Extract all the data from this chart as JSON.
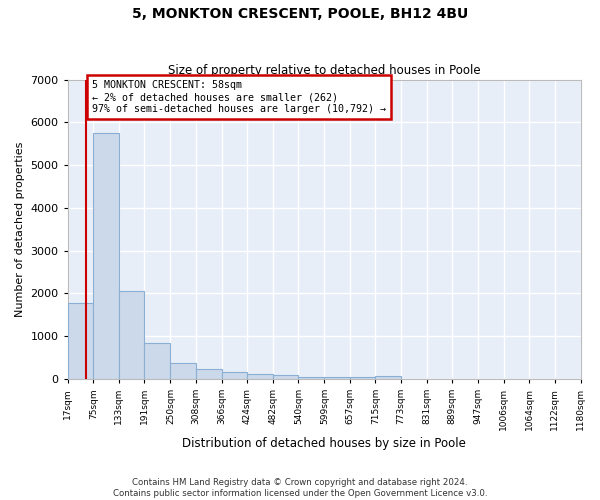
{
  "title": "5, MONKTON CRESCENT, POOLE, BH12 4BU",
  "subtitle": "Size of property relative to detached houses in Poole",
  "xlabel": "Distribution of detached houses by size in Poole",
  "ylabel": "Number of detached properties",
  "bar_color": "#ccd9ea",
  "bar_edge_color": "#8aafd4",
  "background_color": "#e8eef8",
  "grid_color": "#ffffff",
  "annotation_box_color": "#cc0000",
  "property_line_color": "#cc0000",
  "bins": [
    17,
    75,
    133,
    191,
    250,
    308,
    366,
    424,
    482,
    540,
    599,
    657,
    715,
    773,
    831,
    889,
    947,
    1006,
    1064,
    1122,
    1180
  ],
  "counts": [
    1780,
    5750,
    2050,
    840,
    380,
    240,
    160,
    105,
    85,
    55,
    45,
    40,
    75,
    0,
    0,
    0,
    0,
    0,
    0,
    0
  ],
  "property_size": 58,
  "annotation_line1": "5 MONKTON CRESCENT: 58sqm",
  "annotation_line2": "← 2% of detached houses are smaller (262)",
  "annotation_line3": "97% of semi-detached houses are larger (10,792) →",
  "ylim": [
    0,
    7000
  ],
  "yticks": [
    0,
    1000,
    2000,
    3000,
    4000,
    5000,
    6000,
    7000
  ],
  "footer": "Contains HM Land Registry data © Crown copyright and database right 2024.\nContains public sector information licensed under the Open Government Licence v3.0.",
  "tick_labels": [
    "17sqm",
    "75sqm",
    "133sqm",
    "191sqm",
    "250sqm",
    "308sqm",
    "366sqm",
    "424sqm",
    "482sqm",
    "540sqm",
    "599sqm",
    "657sqm",
    "715sqm",
    "773sqm",
    "831sqm",
    "889sqm",
    "947sqm",
    "1006sqm",
    "1064sqm",
    "1122sqm",
    "1180sqm"
  ]
}
